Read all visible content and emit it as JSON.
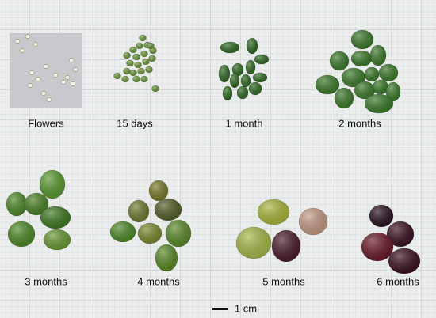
{
  "labels": [
    "Flowers",
    "15 days",
    "1 month",
    "2 months",
    "3 months",
    "4 months",
    "5 months",
    "6 months"
  ],
  "scale_bar": "1 cm"
}
